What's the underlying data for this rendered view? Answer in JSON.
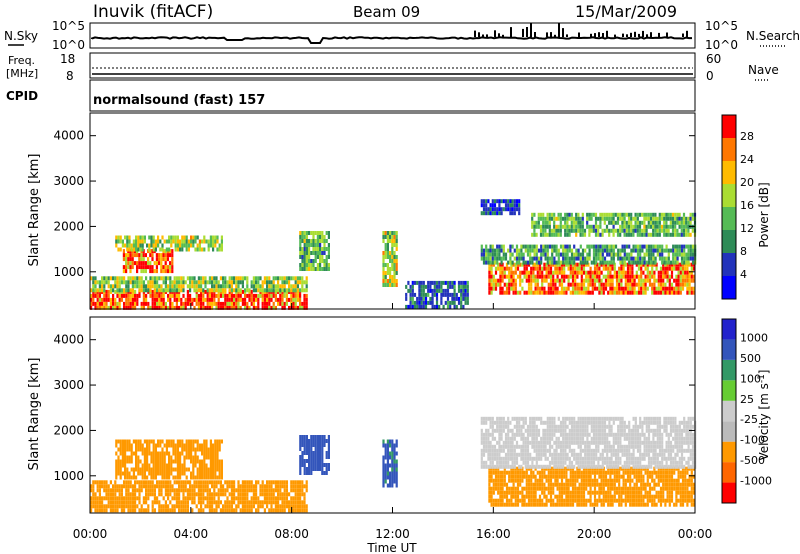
{
  "header": {
    "station": "Inuvik (fitACF)",
    "beam": "Beam 09",
    "date": "15/Mar/2009"
  },
  "nsky_panel": {
    "left_label": "N.Sky",
    "right_label": "N.Search",
    "left_ticks": [
      "10^5",
      "10^0"
    ],
    "right_ticks": [
      "10^5",
      "10^0"
    ]
  },
  "freq_panel": {
    "left_label": "Freq.",
    "left_unit": "[MHz]",
    "right_label": "Nave",
    "left_ticks": [
      "18",
      "8"
    ],
    "right_ticks": [
      "60",
      "0"
    ]
  },
  "cpid_panel": {
    "label": "CPID",
    "value": "normalsound (fast) 157"
  },
  "colors": {
    "power": [
      "#0000ff",
      "#2233bb",
      "#2e8b57",
      "#55bb55",
      "#aadd33",
      "#ffbb00",
      "#ff7700",
      "#ff0000"
    ],
    "velocity": [
      "#ff0000",
      "#ff6600",
      "#ff9900",
      "#bbbbbb",
      "#cccccc",
      "#66cc33",
      "#339966",
      "#3355bb",
      "#2222cc"
    ]
  },
  "chart_data": [
    {
      "type": "heatmap",
      "title": "",
      "xlabel": "Time UT",
      "ylabel": "Slant Range [km]",
      "xlim": [
        "00:00",
        "24:00"
      ],
      "ylim": [
        180,
        4500
      ],
      "x_ticks": [
        "00:00",
        "04:00",
        "08:00",
        "12:00",
        "16:00",
        "20:00",
        "00:00"
      ],
      "y_ticks": [
        1000,
        2000,
        3000,
        4000
      ],
      "colorbar": {
        "label": "Power [dB]",
        "ticks": [
          4,
          8,
          12,
          16,
          20,
          24,
          28
        ],
        "range": [
          0,
          32
        ]
      },
      "regions": [
        {
          "t0": 0.0,
          "t1": 8.6,
          "r0": 200,
          "r1": 600,
          "value": 28
        },
        {
          "t0": 0.0,
          "t1": 8.6,
          "r0": 600,
          "r1": 900,
          "value": 16
        },
        {
          "t0": 1.3,
          "t1": 3.3,
          "r0": 1000,
          "r1": 1500,
          "value": 26
        },
        {
          "t0": 1.0,
          "t1": 5.2,
          "r0": 1500,
          "r1": 1800,
          "value": 17
        },
        {
          "t0": 8.3,
          "t1": 9.5,
          "r0": 1100,
          "r1": 1900,
          "value": 14
        },
        {
          "t0": 11.6,
          "t1": 12.2,
          "r0": 700,
          "r1": 1900,
          "value": 18
        },
        {
          "t0": 12.5,
          "t1": 15.0,
          "r0": 200,
          "r1": 800,
          "value": 8
        },
        {
          "t0": 15.8,
          "t1": 24.0,
          "r0": 500,
          "r1": 1200,
          "value": 26
        },
        {
          "t0": 15.5,
          "t1": 24.0,
          "r0": 1200,
          "r1": 1600,
          "value": 12
        },
        {
          "t0": 17.5,
          "t1": 24.0,
          "r0": 1800,
          "r1": 2300,
          "value": 14
        },
        {
          "t0": 15.5,
          "t1": 17.0,
          "r0": 2300,
          "r1": 2600,
          "value": 6
        }
      ]
    },
    {
      "type": "heatmap",
      "title": "",
      "xlabel": "Time UT",
      "ylabel": "Slant Range [km]",
      "xlim": [
        "00:00",
        "24:00"
      ],
      "ylim": [
        180,
        4500
      ],
      "x_ticks": [
        "00:00",
        "04:00",
        "08:00",
        "12:00",
        "16:00",
        "20:00",
        "00:00"
      ],
      "y_ticks": [
        1000,
        2000,
        3000,
        4000
      ],
      "colorbar": {
        "label": "Velocity [m s^-1]",
        "ticks": [
          -1000,
          -500,
          -100,
          -25,
          25,
          100,
          500,
          1000
        ]
      },
      "regions": [
        {
          "t0": 0.0,
          "t1": 8.6,
          "r0": 200,
          "r1": 900,
          "value": -200
        },
        {
          "t0": 1.0,
          "t1": 5.2,
          "r0": 1000,
          "r1": 1800,
          "value": -300
        },
        {
          "t0": 8.3,
          "t1": 9.5,
          "r0": 1100,
          "r1": 1900,
          "value": 700
        },
        {
          "t0": 11.6,
          "t1": 12.2,
          "r0": 800,
          "r1": 1800,
          "value": 600
        },
        {
          "t0": 15.8,
          "t1": 24.0,
          "r0": 400,
          "r1": 1200,
          "value": -300
        },
        {
          "t0": 15.5,
          "t1": 24.0,
          "r0": 1200,
          "r1": 2300,
          "value": 0
        }
      ]
    }
  ]
}
